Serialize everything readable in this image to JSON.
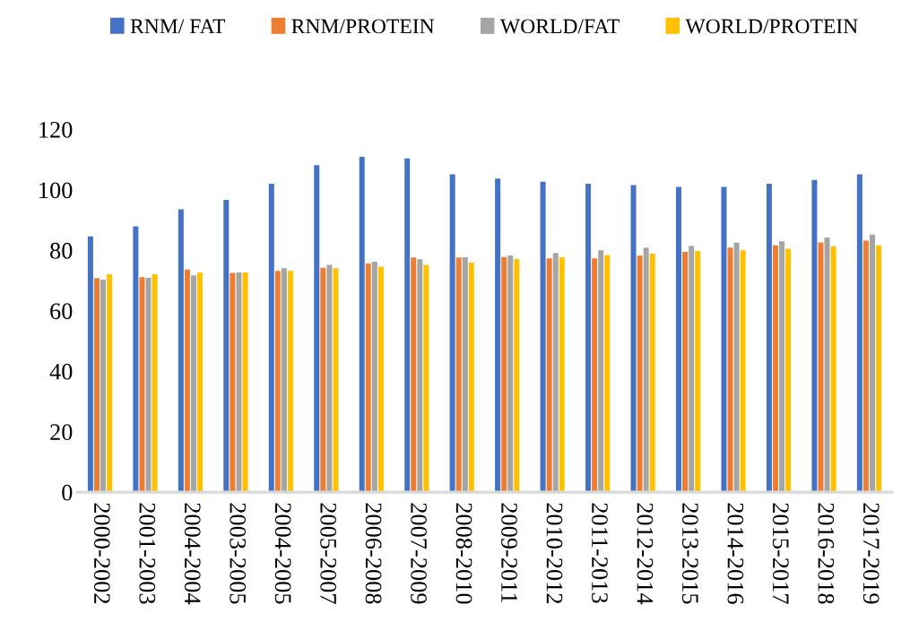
{
  "chart_data": {
    "type": "bar",
    "categories": [
      "2000-2002",
      "2001-2003",
      "2004-2004",
      "2003-2005",
      "2004-2005",
      "2005-2007",
      "2006-2008",
      "2007-2009",
      "2008-2010",
      "2009-2011",
      "2010-2012",
      "2011-2013",
      "2012-2014",
      "2013-2015",
      "2014-2016",
      "2015-2017",
      "2016-2018",
      "2017-2019"
    ],
    "series": [
      {
        "name": "RNM/ FAT",
        "color": "#4472c4",
        "values": [
          84.6,
          87.9,
          93.6,
          96.7,
          102.0,
          108.2,
          110.9,
          110.4,
          105.1,
          103.7,
          102.7,
          102.0,
          101.6,
          101.0,
          101.0,
          102.0,
          103.3,
          105.1
        ]
      },
      {
        "name": "RNM/PROTEIN",
        "color": "#ed7d31",
        "values": [
          70.8,
          71.1,
          73.6,
          72.5,
          73.2,
          74.2,
          75.6,
          77.6,
          77.6,
          77.8,
          77.3,
          77.3,
          78.2,
          79.5,
          80.9,
          81.6,
          82.6,
          83.2
        ]
      },
      {
        "name": "WORLD/FAT",
        "color": "#a5a5a5",
        "values": [
          70.3,
          70.9,
          71.7,
          72.7,
          74.1,
          75.2,
          76.2,
          77.0,
          77.7,
          78.3,
          79.1,
          80.0,
          80.9,
          81.5,
          82.5,
          83.0,
          84.2,
          85.2
        ]
      },
      {
        "name": "WORLD/PROTEIN",
        "color": "#ffc000",
        "values": [
          72.1,
          72.1,
          72.6,
          72.7,
          73.2,
          74.1,
          74.6,
          75.2,
          75.9,
          77.1,
          77.7,
          78.4,
          78.9,
          79.8,
          80.0,
          80.5,
          81.3,
          81.6
        ]
      }
    ],
    "ylim": [
      0,
      120
    ],
    "yticks": [
      0,
      20,
      40,
      60,
      80,
      100,
      120
    ],
    "grid": false,
    "legend": "top"
  }
}
